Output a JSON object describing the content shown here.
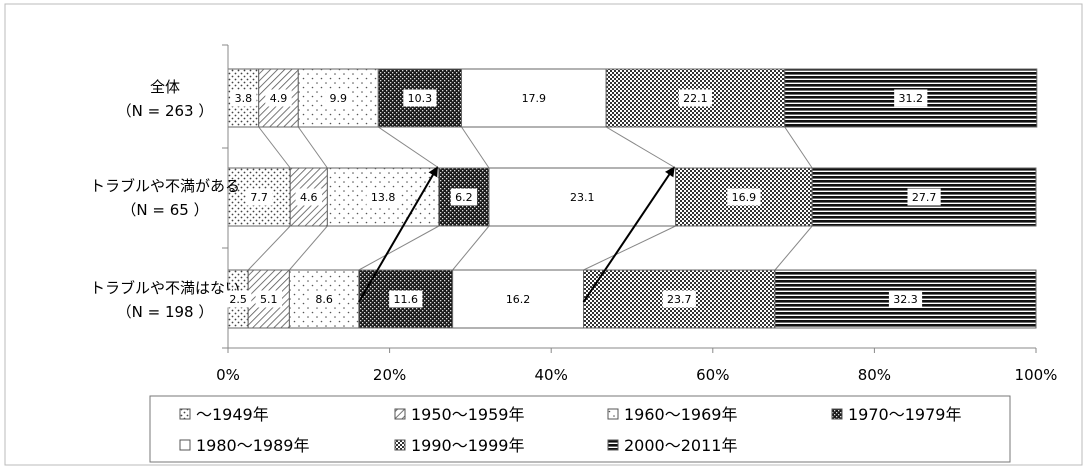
{
  "chart_data": {
    "type": "bar",
    "orientation": "horizontal",
    "stacked": "percent",
    "categories": [
      {
        "label": "全体",
        "n": "（N = 263 ）"
      },
      {
        "label": "トラブルや不満がある",
        "n": "（N = 65 ）"
      },
      {
        "label": "トラブルや不満はない",
        "n": "（N = 198 ）"
      }
    ],
    "series": [
      {
        "name": "～1949年",
        "pattern": "dots-sparse",
        "values": [
          3.8,
          7.7,
          2.5
        ]
      },
      {
        "name": "1950～1959年",
        "pattern": "diagonal",
        "values": [
          4.9,
          4.6,
          5.1
        ]
      },
      {
        "name": "1960～1969年",
        "pattern": "dots-fine",
        "values": [
          9.9,
          13.8,
          8.6
        ]
      },
      {
        "name": "1970～1979年",
        "pattern": "dark-check",
        "values": [
          10.3,
          6.2,
          11.6
        ]
      },
      {
        "name": "1980～1989年",
        "pattern": "white",
        "values": [
          17.9,
          23.1,
          16.2
        ]
      },
      {
        "name": "1990～1999年",
        "pattern": "checker",
        "values": [
          22.1,
          16.9,
          23.7
        ]
      },
      {
        "name": "2000～2011年",
        "pattern": "hstripes",
        "values": [
          31.2,
          27.7,
          32.3
        ]
      }
    ],
    "x_ticks": [
      "0%",
      "20%",
      "40%",
      "60%",
      "80%",
      "100%"
    ],
    "xlim": [
      0,
      100
    ],
    "legend_position": "bottom",
    "grid": false,
    "series_lines": true,
    "annotations": [
      {
        "type": "arrow",
        "from_category": 2,
        "to_category": 1,
        "at_series_boundary": 3,
        "note": "arrow pointing up-right"
      },
      {
        "type": "arrow",
        "from_category": 2,
        "to_category": 1,
        "at_series_boundary": 5,
        "note": "arrow pointing up-right"
      }
    ]
  }
}
